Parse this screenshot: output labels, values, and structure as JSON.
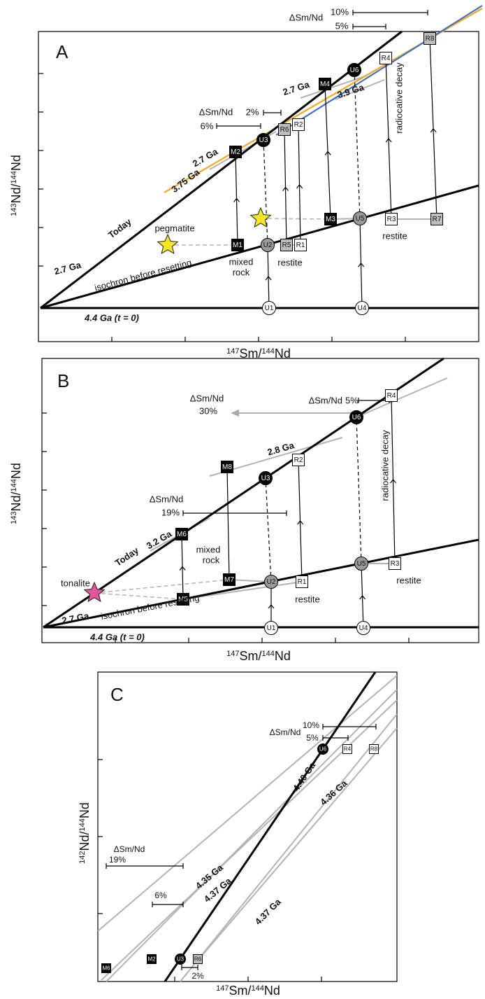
{
  "panels": [
    {
      "label": "A",
      "x_axis_label": [
        "147",
        "Sm/",
        "144",
        "Nd"
      ],
      "y_axis_label": [
        "143",
        "Nd/",
        "144",
        "Nd"
      ],
      "nodes": [
        "U1",
        "U4",
        "U2",
        "U5",
        "M1",
        "M3",
        "R5",
        "R1",
        "R3",
        "R7",
        "U3",
        "U6",
        "M2",
        "M4",
        "R6",
        "R2",
        "R4",
        "R8"
      ],
      "annotations": [
        "Today",
        "2.7 Ga",
        "isochron before resetting",
        "4.4 Ga (t = 0)",
        "pegmatite",
        "mixed",
        "rock",
        "restite",
        "restite",
        "radiocative decay",
        "3.75 Ga",
        "2.7 Ga",
        "2.7 Ga",
        "3.9 Ga",
        "ΔSm/Nd",
        "2%",
        "6%",
        "ΔSm/Nd",
        "10%",
        "5%"
      ]
    },
    {
      "label": "B",
      "x_axis_label": [
        "147",
        "Sm/",
        "144",
        "Nd"
      ],
      "y_axis_label": [
        "143",
        "Nd/",
        "144",
        "Nd"
      ],
      "nodes": [
        "U1",
        "U4",
        "U2",
        "U5",
        "M5",
        "M7",
        "R1",
        "R3",
        "U3",
        "U6",
        "M6",
        "M8",
        "R2",
        "R4"
      ],
      "annotations": [
        "tonalite",
        "Today",
        "2.7 Ga",
        "isochron before resetting",
        "4.4 Ga (t = 0)",
        "mixed",
        "rock",
        "restite",
        "restite",
        "radiocative decay",
        "3.2 Ga",
        "2.8 Ga",
        "ΔSm/Nd",
        "19%",
        "ΔSm/Nd",
        "30%",
        "ΔSm/Nd",
        "5%"
      ]
    },
    {
      "label": "C",
      "x_axis_label": [
        "147",
        "Sm/",
        "144",
        "Nd"
      ],
      "y_axis_label": [
        "142",
        "Nd/",
        "144",
        "Nd"
      ],
      "nodes": [
        "U6",
        "R4",
        "R8",
        "U3",
        "R6",
        "M2",
        "M6"
      ],
      "annotations": [
        "4.40 Ga",
        "4.36 Ga",
        "4.35 Ga",
        "4.37 Ga",
        "4.37 Ga",
        "ΔSm/Nd",
        "19%",
        "6%",
        "2%",
        "ΔSm/Nd",
        "10%",
        "5%"
      ]
    }
  ]
}
